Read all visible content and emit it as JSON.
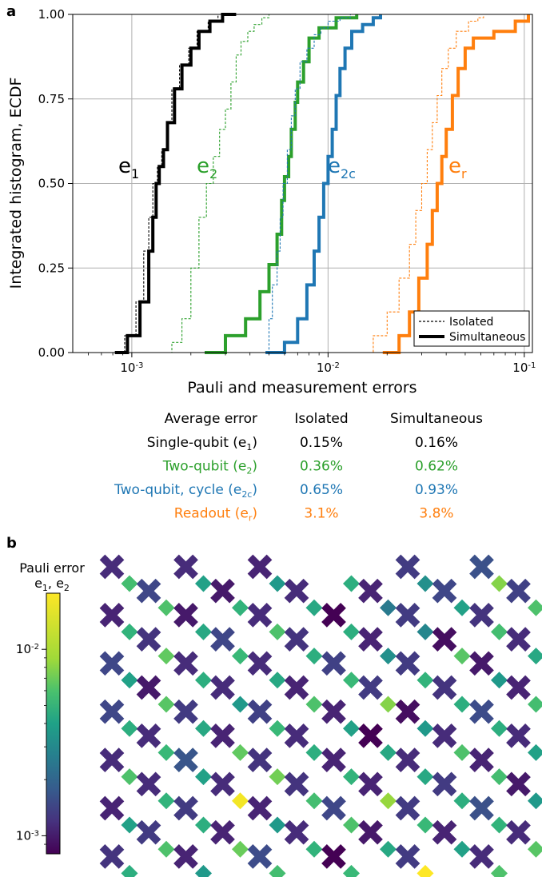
{
  "panel_a": {
    "label": "a",
    "chart_data": {
      "type": "line",
      "xscale": "log",
      "xlim": [
        0.0005,
        0.11
      ],
      "ylim": [
        0,
        1
      ],
      "xlabel": "Pauli and measurement errors",
      "ylabel": "Integrated histogram, ECDF",
      "x_ticks": [
        0.001,
        0.01,
        0.1
      ],
      "x_tick_labels": [
        [
          "10",
          "-3"
        ],
        [
          "10",
          "-2"
        ],
        [
          "10",
          "-1"
        ]
      ],
      "y_ticks": [
        0,
        0.25,
        0.5,
        0.75,
        1.0
      ],
      "y_tick_labels": [
        "0.00",
        "0.25",
        "0.50",
        "0.75",
        "1.00"
      ],
      "grid": true,
      "legend": {
        "position": "bottom-right",
        "entries": [
          "Isolated",
          "Simultaneous"
        ]
      },
      "series": [
        {
          "name": "e1",
          "color": "#000000",
          "style": "solid",
          "x": [
            0.00082,
            0.00095,
            0.0011,
            0.00122,
            0.00128,
            0.00133,
            0.00138,
            0.00145,
            0.00152,
            0.00165,
            0.0018,
            0.002,
            0.0022,
            0.0025,
            0.0029,
            0.0034
          ],
          "y": [
            0,
            0.05,
            0.15,
            0.3,
            0.4,
            0.5,
            0.55,
            0.6,
            0.68,
            0.78,
            0.85,
            0.9,
            0.95,
            0.98,
            1.0,
            1.0
          ]
        },
        {
          "name": "e1",
          "color": "#000000",
          "style": "dashed",
          "x": [
            0.0008,
            0.00092,
            0.00105,
            0.00115,
            0.00122,
            0.00128,
            0.00135,
            0.00142,
            0.0015,
            0.0016,
            0.00175,
            0.00195,
            0.00215,
            0.00245,
            0.00275,
            0.0031
          ],
          "y": [
            0,
            0.05,
            0.15,
            0.3,
            0.4,
            0.5,
            0.55,
            0.6,
            0.68,
            0.78,
            0.85,
            0.9,
            0.95,
            0.98,
            1.0,
            1.0
          ]
        },
        {
          "name": "e2",
          "color": "#2ca02c",
          "style": "solid",
          "x": [
            0.00235,
            0.003,
            0.0038,
            0.0045,
            0.005,
            0.0055,
            0.0058,
            0.006,
            0.0063,
            0.0065,
            0.0068,
            0.007,
            0.0075,
            0.008,
            0.009,
            0.011,
            0.014
          ],
          "y": [
            0,
            0.05,
            0.1,
            0.18,
            0.26,
            0.35,
            0.45,
            0.52,
            0.58,
            0.66,
            0.74,
            0.8,
            0.86,
            0.93,
            0.96,
            0.99,
            1.0
          ]
        },
        {
          "name": "e2",
          "color": "#2ca02c",
          "style": "dashed",
          "x": [
            0.0013,
            0.0016,
            0.0018,
            0.002,
            0.0022,
            0.0024,
            0.0026,
            0.0028,
            0.003,
            0.0032,
            0.0034,
            0.0036,
            0.0039,
            0.0042,
            0.0046,
            0.005
          ],
          "y": [
            0,
            0.03,
            0.1,
            0.25,
            0.4,
            0.5,
            0.58,
            0.66,
            0.72,
            0.8,
            0.88,
            0.92,
            0.95,
            0.97,
            0.99,
            1.0
          ]
        },
        {
          "name": "e2c",
          "color": "#1f77b4",
          "style": "solid",
          "x": [
            0.0048,
            0.006,
            0.007,
            0.0078,
            0.0085,
            0.009,
            0.0095,
            0.01,
            0.0105,
            0.011,
            0.0115,
            0.0122,
            0.0132,
            0.015,
            0.017,
            0.0185
          ],
          "y": [
            0,
            0.03,
            0.1,
            0.2,
            0.3,
            0.4,
            0.5,
            0.58,
            0.66,
            0.76,
            0.84,
            0.9,
            0.95,
            0.97,
            0.99,
            1.0
          ]
        },
        {
          "name": "e2c",
          "color": "#1f77b4",
          "style": "dashed",
          "x": [
            0.0045,
            0.005,
            0.0052,
            0.0055,
            0.0057,
            0.0059,
            0.0062,
            0.0065,
            0.0068,
            0.0072,
            0.0078,
            0.0085,
            0.0092,
            0.01,
            0.0115,
            0.013
          ],
          "y": [
            0,
            0.1,
            0.2,
            0.3,
            0.4,
            0.5,
            0.6,
            0.7,
            0.78,
            0.86,
            0.9,
            0.94,
            0.96,
            0.98,
            0.99,
            1.0
          ]
        },
        {
          "name": "er",
          "color": "#ff7f0e",
          "style": "solid",
          "x": [
            0.019,
            0.023,
            0.026,
            0.029,
            0.032,
            0.034,
            0.036,
            0.038,
            0.04,
            0.043,
            0.046,
            0.05,
            0.055,
            0.07,
            0.09,
            0.105
          ],
          "y": [
            0,
            0.05,
            0.12,
            0.22,
            0.32,
            0.42,
            0.5,
            0.58,
            0.66,
            0.76,
            0.84,
            0.9,
            0.93,
            0.95,
            0.98,
            1.0
          ]
        },
        {
          "name": "er",
          "color": "#ff7f0e",
          "style": "dashed",
          "x": [
            0.0135,
            0.017,
            0.02,
            0.023,
            0.026,
            0.028,
            0.03,
            0.032,
            0.034,
            0.036,
            0.038,
            0.041,
            0.045,
            0.052,
            0.058,
            0.062
          ],
          "y": [
            0,
            0.05,
            0.12,
            0.22,
            0.32,
            0.42,
            0.5,
            0.6,
            0.68,
            0.76,
            0.84,
            0.9,
            0.95,
            0.98,
            0.99,
            1.0
          ]
        }
      ],
      "annotations": [
        {
          "main": "e",
          "sub": "1",
          "color": "#000000"
        },
        {
          "main": "e",
          "sub": "2",
          "color": "#2ca02c"
        },
        {
          "main": "e",
          "sub": "2c",
          "color": "#1f77b4"
        },
        {
          "main": "e",
          "sub": "r",
          "color": "#ff7f0e"
        }
      ]
    },
    "table": {
      "headers": [
        "Average error",
        "Isolated",
        "Simultaneous"
      ],
      "rows": [
        {
          "label": "Single-qubit (e",
          "sub": "1",
          "close": ")",
          "isolated": "0.15%",
          "simultaneous": "0.16%",
          "color": "#000000"
        },
        {
          "label": "Two-qubit (e",
          "sub": "2",
          "close": ")",
          "isolated": "0.36%",
          "simultaneous": "0.62%",
          "color": "#2ca02c"
        },
        {
          "label": "Two-qubit, cycle (e",
          "sub": "2c",
          "close": ")",
          "isolated": "0.65%",
          "simultaneous": "0.93%",
          "color": "#1f77b4"
        },
        {
          "label": "Readout (e",
          "sub": "r",
          "close": ")",
          "isolated": "3.1%",
          "simultaneous": "3.8%",
          "color": "#ff7f0e"
        }
      ]
    }
  },
  "panel_b": {
    "label": "b",
    "chart_data": {
      "type": "heatmap",
      "colorbar": {
        "title_line1": "Pauli error",
        "title_line2": [
          "e",
          "1",
          ", e",
          "2"
        ],
        "scale": "log",
        "range": [
          0.0008,
          0.02
        ],
        "ticks": [
          0.001,
          0.01
        ],
        "tick_labels": [
          [
            "10",
            "-3"
          ],
          [
            "10",
            "-2"
          ]
        ],
        "colormap": "viridis"
      },
      "qubit_errors": [
        [
          0.0012,
          0.0012,
          0.0011,
          null,
          0.0014,
          0.0018
        ],
        [
          0.0016,
          0.001,
          0.0012,
          0.0011,
          0.0016,
          0.0015
        ],
        [
          0.0011,
          0.001,
          0.0012,
          0.0007,
          0.0014,
          0.0013
        ],
        [
          0.0013,
          0.0016,
          0.0013,
          0.0011,
          0.0009,
          0.0012
        ],
        [
          0.0016,
          0.0012,
          0.0012,
          0.0015,
          0.0014,
          0.001
        ],
        [
          0.001,
          0.0012,
          0.0011,
          0.0014,
          0.0013,
          0.0011
        ],
        [
          0.0016,
          0.0014,
          0.0015,
          0.0011,
          0.0009,
          0.0017
        ],
        [
          0.0012,
          0.0011,
          0.0012,
          0.0008,
          0.0012,
          0.0012
        ],
        [
          0.0012,
          0.0019,
          0.0013,
          0.0011,
          0.0012,
          0.0011
        ],
        [
          0.0012,
          0.0012,
          0.0013,
          0.0011,
          0.0014,
          0.001
        ],
        [
          0.0011,
          0.0014,
          0.0011,
          0.0016,
          0.0014,
          0.0018
        ],
        [
          0.0014,
          0.0011,
          0.0012,
          0.001,
          0.0011,
          0.0012
        ],
        [
          0.0013,
          0.0011,
          0.0017,
          0.0008,
          0.0014,
          0.0012
        ]
      ],
      "coupler_errors": [
        [
          0.0075,
          0.005,
          0.0045,
          0.006,
          0.004,
          0.011
        ],
        [
          0.008,
          0.0065,
          0.0055,
          0.003,
          0.005,
          0.008
        ],
        [
          0.0065,
          0.0055,
          0.008,
          0.006,
          0.0035,
          0.0075
        ],
        [
          0.009,
          0.007,
          0.006,
          0.004,
          0.0085,
          0.0055
        ],
        [
          0.005,
          0.006,
          0.0055,
          0.007,
          0.0065,
          0.0045
        ],
        [
          0.0085,
          0.0045,
          0.008,
          0.011,
          0.006,
          0.0075
        ],
        [
          0.006,
          0.0055,
          0.007,
          0.005,
          0.0045,
          0.006
        ],
        [
          0.007,
          0.009,
          0.006,
          0.0055,
          0.008,
          0.005
        ],
        [
          0.008,
          0.005,
          0.01,
          0.0065,
          0.0055,
          0.0075
        ],
        [
          0.0065,
          0.019,
          0.0075,
          0.012,
          0.006,
          0.0045
        ],
        [
          0.005,
          0.006,
          0.0045,
          0.008,
          0.007,
          0.0065
        ],
        [
          0.008,
          0.0095,
          0.0065,
          0.0055,
          0.005,
          0.0085
        ],
        [
          0.006,
          0.0045,
          0.0075,
          0.007,
          0.02,
          0.008
        ]
      ]
    }
  }
}
